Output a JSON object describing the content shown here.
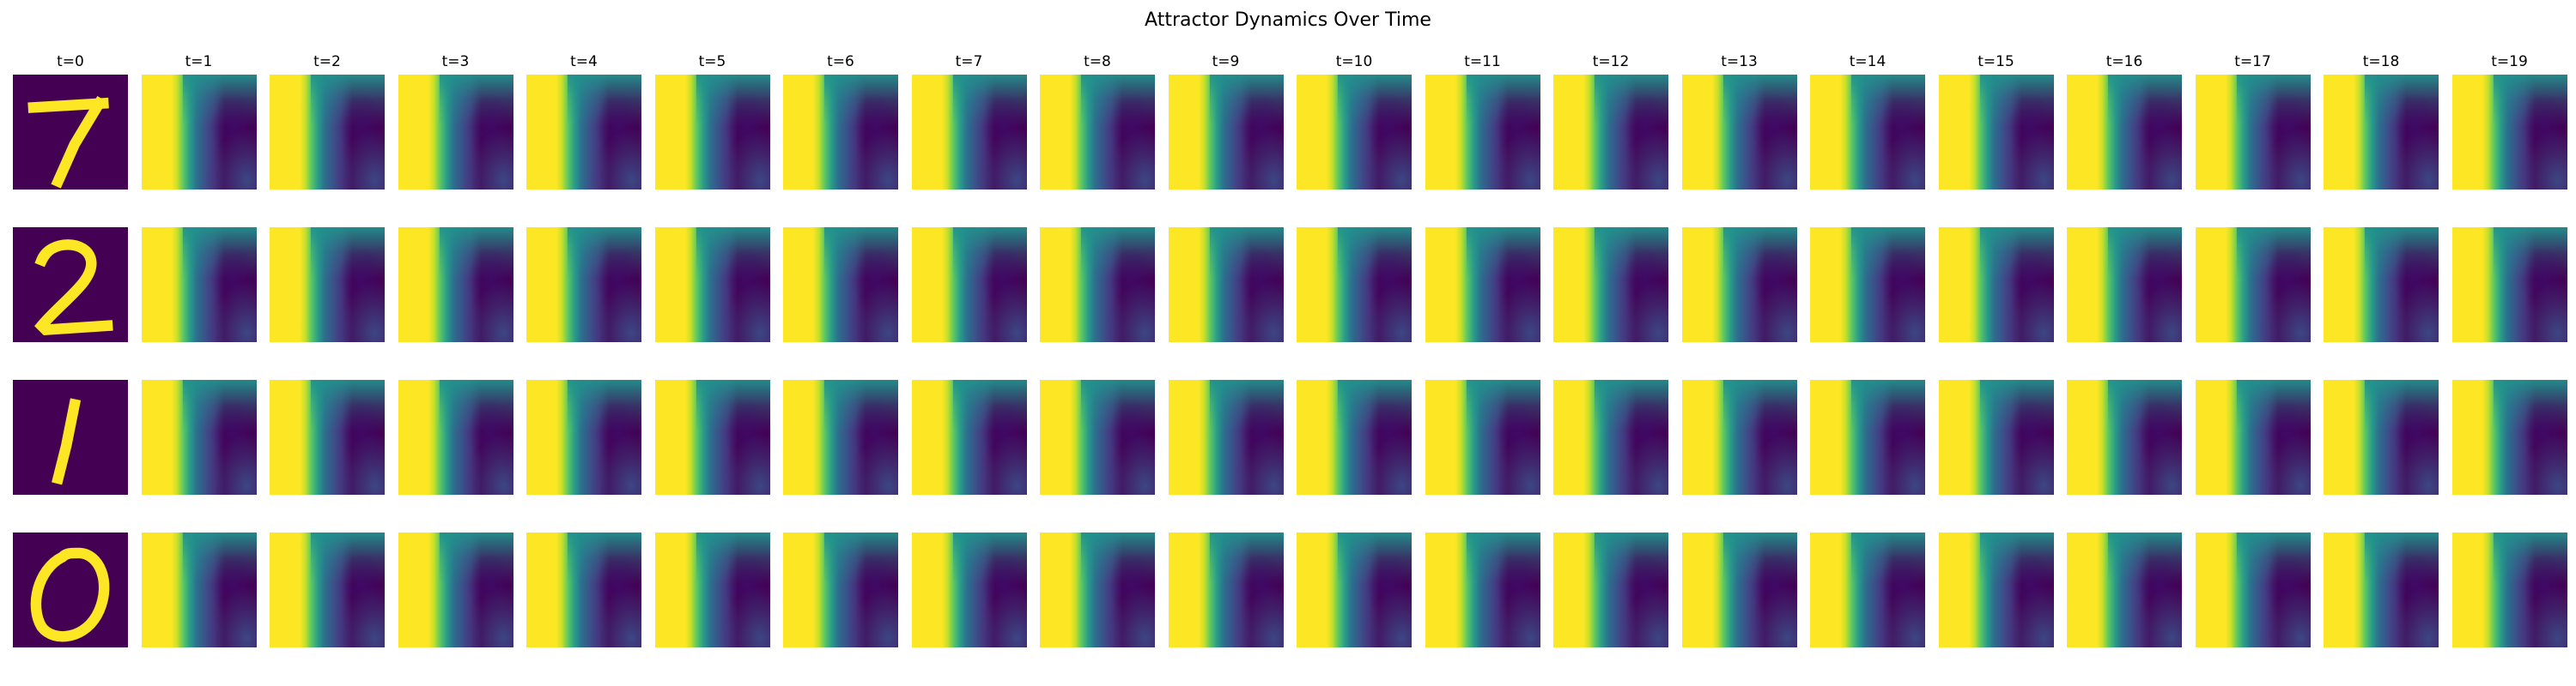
{
  "chart_data": {
    "type": "heatmap",
    "title": "Attractor Dynamics Over Time",
    "columns": [
      "t=0",
      "t=1",
      "t=2",
      "t=3",
      "t=4",
      "t=5",
      "t=6",
      "t=7",
      "t=8",
      "t=9",
      "t=10",
      "t=11",
      "t=12",
      "t=13",
      "t=14",
      "t=15",
      "t=16",
      "t=17",
      "t=18",
      "t=19"
    ],
    "rows": [
      {
        "input_digit": "7"
      },
      {
        "input_digit": "2"
      },
      {
        "input_digit": "1"
      },
      {
        "input_digit": "0"
      }
    ],
    "colormap": "viridis",
    "colors": {
      "low": "#440154",
      "mid": "#21918c",
      "high": "#fde725"
    },
    "axes": "off",
    "grid": false
  }
}
